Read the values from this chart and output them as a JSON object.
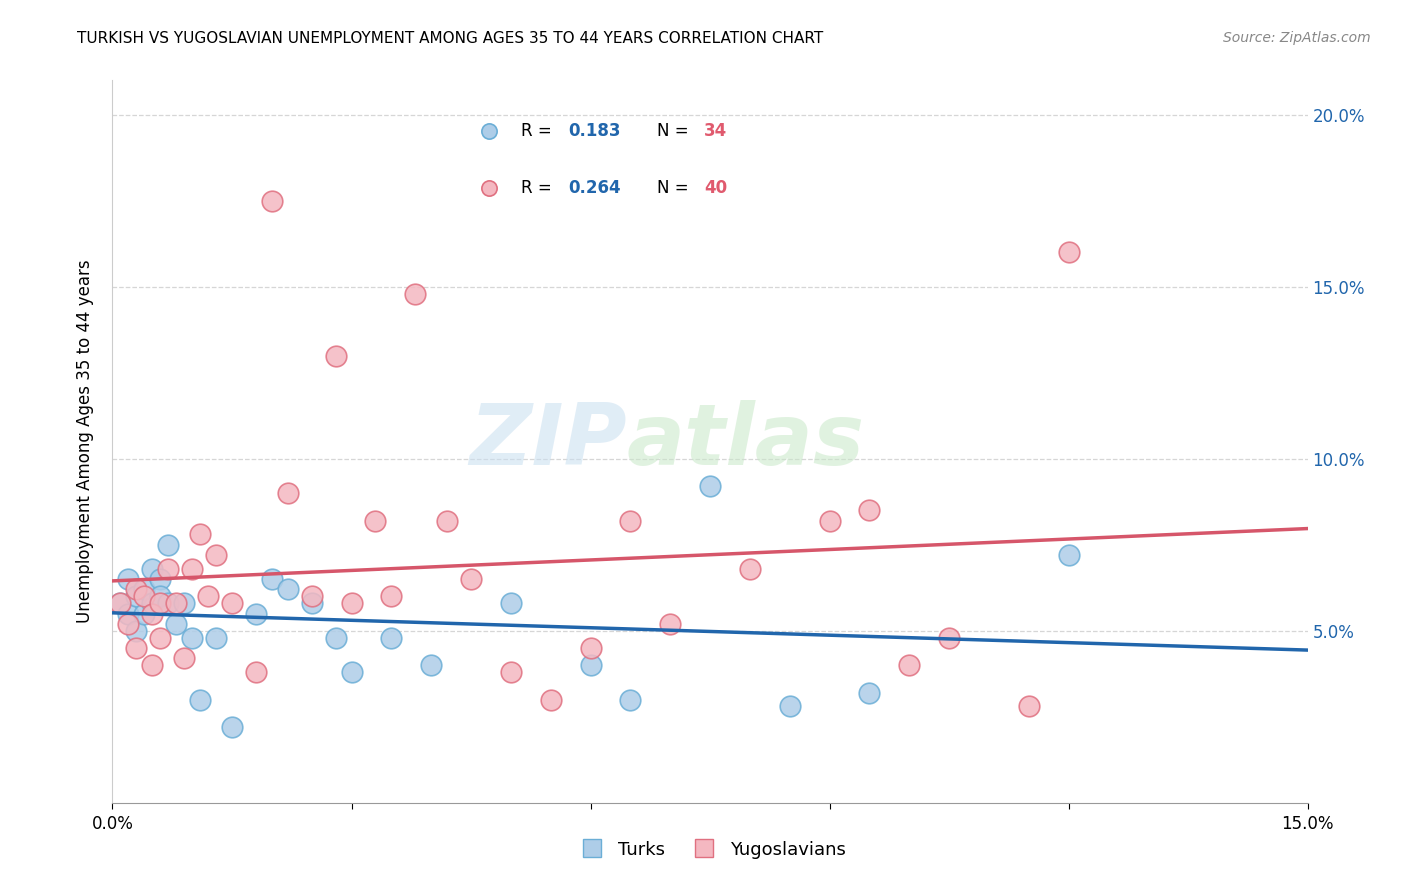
{
  "title": "TURKISH VS YUGOSLAVIAN UNEMPLOYMENT AMONG AGES 35 TO 44 YEARS CORRELATION CHART",
  "source": "Source: ZipAtlas.com",
  "ylabel": "Unemployment Among Ages 35 to 44 years",
  "xlim": [
    0.0,
    0.15
  ],
  "ylim": [
    0.0,
    0.21
  ],
  "ytick_vals": [
    0.05,
    0.1,
    0.15,
    0.2
  ],
  "ytick_labels": [
    "5.0%",
    "10.0%",
    "15.0%",
    "20.0%"
  ],
  "xtick_vals": [
    0.0,
    0.03,
    0.06,
    0.09,
    0.12,
    0.15
  ],
  "xtick_labels": [
    "0.0%",
    "",
    "",
    "",
    "",
    "15.0%"
  ],
  "color_turks_face": "#aecde8",
  "color_turks_edge": "#6baed6",
  "color_yugos_face": "#f4b8c1",
  "color_yugos_edge": "#e07080",
  "line_color_turks": "#2166ac",
  "line_color_yugos": "#d6566a",
  "legend_r_turks": "0.183",
  "legend_n_turks": "34",
  "legend_r_yugos": "0.264",
  "legend_n_yugos": "40",
  "watermark_zip": "ZIP",
  "watermark_atlas": "atlas",
  "turks_x": [
    0.001,
    0.002,
    0.002,
    0.003,
    0.003,
    0.004,
    0.004,
    0.005,
    0.005,
    0.006,
    0.006,
    0.007,
    0.007,
    0.008,
    0.009,
    0.01,
    0.011,
    0.013,
    0.015,
    0.018,
    0.02,
    0.022,
    0.025,
    0.028,
    0.03,
    0.035,
    0.04,
    0.05,
    0.06,
    0.065,
    0.075,
    0.085,
    0.095,
    0.12
  ],
  "turks_y": [
    0.058,
    0.055,
    0.065,
    0.06,
    0.05,
    0.062,
    0.055,
    0.068,
    0.058,
    0.065,
    0.06,
    0.075,
    0.058,
    0.052,
    0.058,
    0.048,
    0.03,
    0.048,
    0.022,
    0.055,
    0.065,
    0.062,
    0.058,
    0.048,
    0.038,
    0.048,
    0.04,
    0.058,
    0.04,
    0.03,
    0.092,
    0.028,
    0.032,
    0.072
  ],
  "yugos_x": [
    0.001,
    0.002,
    0.003,
    0.003,
    0.004,
    0.005,
    0.005,
    0.006,
    0.006,
    0.007,
    0.008,
    0.009,
    0.01,
    0.011,
    0.012,
    0.013,
    0.015,
    0.018,
    0.02,
    0.022,
    0.025,
    0.028,
    0.03,
    0.033,
    0.035,
    0.038,
    0.042,
    0.045,
    0.05,
    0.055,
    0.06,
    0.065,
    0.07,
    0.08,
    0.09,
    0.095,
    0.1,
    0.105,
    0.115,
    0.12
  ],
  "yugos_y": [
    0.058,
    0.052,
    0.062,
    0.045,
    0.06,
    0.055,
    0.04,
    0.058,
    0.048,
    0.068,
    0.058,
    0.042,
    0.068,
    0.078,
    0.06,
    0.072,
    0.058,
    0.038,
    0.175,
    0.09,
    0.06,
    0.13,
    0.058,
    0.082,
    0.06,
    0.148,
    0.082,
    0.065,
    0.038,
    0.03,
    0.045,
    0.082,
    0.052,
    0.068,
    0.082,
    0.085,
    0.04,
    0.048,
    0.028,
    0.16
  ]
}
